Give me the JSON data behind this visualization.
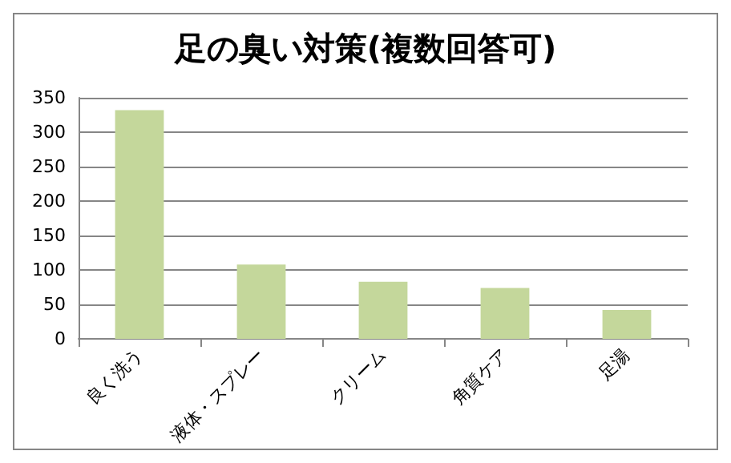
{
  "chart_data": {
    "type": "bar",
    "title": "足の臭い対策(複数回答可)",
    "categories": [
      "良く洗う",
      "液体・スプレー",
      "クリーム",
      "角質ケア",
      "足湯"
    ],
    "values": [
      332,
      108,
      83,
      74,
      42
    ],
    "color": "#c4d79b",
    "ylim": [
      0,
      350
    ],
    "yticks": [
      0,
      50,
      100,
      150,
      200,
      250,
      300,
      350
    ],
    "grid": "y"
  }
}
